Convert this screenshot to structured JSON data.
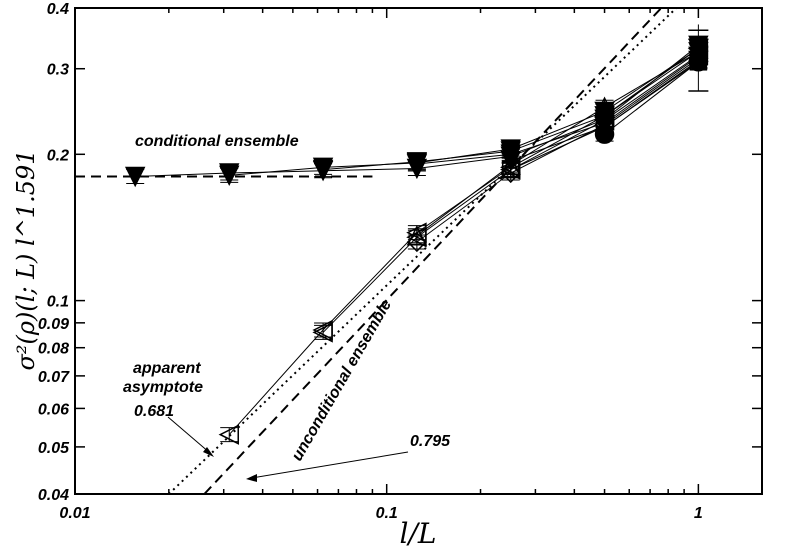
{
  "chart_data": {
    "type": "scatter",
    "xscale": "log",
    "yscale": "log",
    "xlim": [
      0.01,
      1.6
    ],
    "ylim": [
      0.04,
      0.4
    ],
    "xlabel": "l/L",
    "ylabel": "σ²(ρ)(l; L) l^1.591",
    "x_ticks": [
      {
        "value": 0.01,
        "label": "0.01"
      },
      {
        "value": 0.1,
        "label": "0.1"
      },
      {
        "value": 1,
        "label": "1"
      }
    ],
    "y_ticks": [
      {
        "value": 0.04,
        "label": "0.04"
      },
      {
        "value": 0.05,
        "label": "0.05"
      },
      {
        "value": 0.06,
        "label": "0.06"
      },
      {
        "value": 0.07,
        "label": "0.07"
      },
      {
        "value": 0.08,
        "label": "0.08"
      },
      {
        "value": 0.09,
        "label": "0.09"
      },
      {
        "value": 0.1,
        "label": "0.1"
      },
      {
        "value": 0.2,
        "label": "0.2"
      },
      {
        "value": 0.3,
        "label": "0.3"
      },
      {
        "value": 0.4,
        "label": "0.4"
      }
    ],
    "conditional_series": [
      {
        "marker": "triangle-down",
        "x": [
          0.0156,
          0.03125,
          0.0625,
          0.125,
          0.25,
          0.5,
          1.0
        ],
        "y": [
          0.18,
          0.183,
          0.185,
          0.187,
          0.198,
          0.236,
          0.335
        ]
      },
      {
        "marker": "triangle-down",
        "x": [
          0.03125,
          0.0625,
          0.125,
          0.25,
          0.5,
          1.0
        ],
        "y": [
          0.181,
          0.188,
          0.192,
          0.205,
          0.245,
          0.33
        ]
      },
      {
        "marker": "triangle-down",
        "x": [
          0.0625,
          0.125,
          0.25,
          0.5,
          1.0
        ],
        "y": [
          0.186,
          0.193,
          0.203,
          0.24,
          0.325
        ]
      },
      {
        "marker": "triangle-down",
        "x": [
          0.125,
          0.25,
          0.5,
          1.0
        ],
        "y": [
          0.191,
          0.2,
          0.232,
          0.318
        ]
      },
      {
        "marker": "triangle-down",
        "x": [
          0.25,
          0.5,
          1.0
        ],
        "y": [
          0.194,
          0.228,
          0.312
        ]
      },
      {
        "marker": "circle",
        "x": [
          0.5,
          1.0
        ],
        "y": [
          0.22,
          0.31
        ]
      }
    ],
    "unconditional_series": [
      {
        "marker": "triangle-left",
        "x": [
          0.03125,
          0.0625,
          0.125,
          0.25,
          0.5,
          1.0
        ],
        "y": [
          0.053,
          0.087,
          0.138,
          0.188,
          0.24,
          0.33
        ]
      },
      {
        "marker": "triangle-left",
        "x": [
          0.0625,
          0.125,
          0.25,
          0.5,
          1.0
        ],
        "y": [
          0.086,
          0.135,
          0.186,
          0.235,
          0.32
        ]
      },
      {
        "marker": "triangle-up",
        "x": [
          0.125,
          0.25,
          0.5,
          1.0
        ],
        "y": [
          0.136,
          0.19,
          0.25,
          0.325
        ]
      },
      {
        "marker": "diamond",
        "x": [
          0.125,
          0.25,
          0.5,
          1.0
        ],
        "y": [
          0.132,
          0.183,
          0.23,
          0.315
        ]
      },
      {
        "marker": "square",
        "x": [
          0.25,
          0.5,
          1.0
        ],
        "y": [
          0.186,
          0.228,
          0.31
        ]
      }
    ],
    "reference_lines": [
      {
        "style": "dashed",
        "points": [
          [
            0.01,
            0.18
          ],
          [
            0.09,
            0.18
          ]
        ]
      },
      {
        "style": "dotted",
        "points": [
          [
            0.02,
            0.04
          ],
          [
            0.85,
            0.4
          ]
        ]
      },
      {
        "style": "dashed",
        "points": [
          [
            0.026,
            0.04
          ],
          [
            0.76,
            0.4
          ]
        ]
      }
    ],
    "annotations": {
      "conditional": "conditional ensemble",
      "unconditional": "unconditional ensemble",
      "apparent_line1": "apparent",
      "apparent_line2": "asymptote",
      "apparent_value": "0.681",
      "slope_value": "0.795"
    }
  }
}
